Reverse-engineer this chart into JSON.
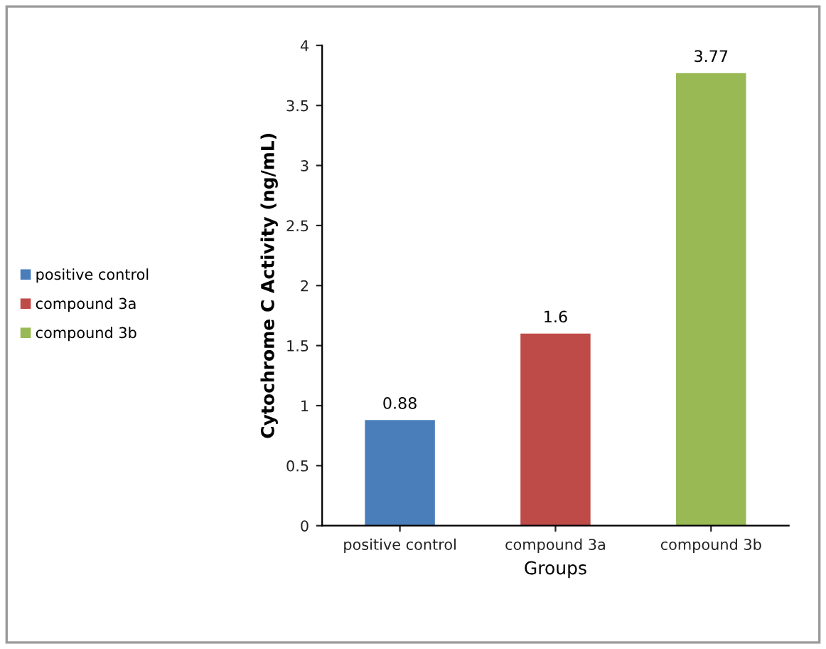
{
  "chart_data": {
    "type": "bar",
    "xlabel": "Groups",
    "ylabel": "Cytochrome C Activity (ng/mL)",
    "categories": [
      "positive control",
      "compound 3a",
      "compound 3b"
    ],
    "series": [
      {
        "name": "positive control",
        "color": "#4a7ebb",
        "values": [
          0.88,
          null,
          null
        ]
      },
      {
        "name": "compound 3a",
        "color": "#be4b48",
        "values": [
          null,
          1.6,
          null
        ]
      },
      {
        "name": "compound 3b",
        "color": "#98b954",
        "values": [
          null,
          null,
          3.77
        ]
      }
    ],
    "ylim": [
      0,
      4
    ],
    "yticks": [
      0,
      0.5,
      1,
      1.5,
      2,
      2.5,
      3,
      3.5,
      4
    ],
    "data_labels": true,
    "grid": false,
    "legend": "left"
  }
}
